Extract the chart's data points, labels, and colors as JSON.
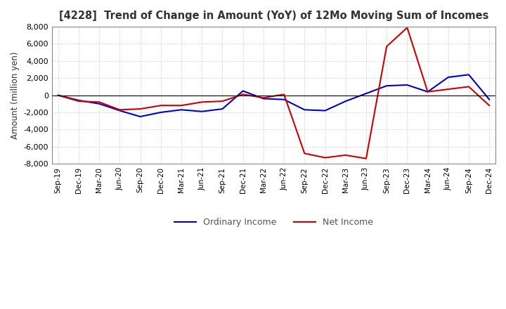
{
  "title": "[4228]  Trend of Change in Amount (YoY) of 12Mo Moving Sum of Incomes",
  "ylabel": "Amount (million yen)",
  "ylim": [
    -8000,
    8000
  ],
  "yticks": [
    -8000,
    -6000,
    -4000,
    -2000,
    0,
    2000,
    4000,
    6000,
    8000
  ],
  "ordinary_income_color": "#0000cc",
  "net_income_color": "#cc0000",
  "background_color": "#ffffff",
  "grid_color": "#aaaaaa",
  "x_labels": [
    "Sep-19",
    "Dec-19",
    "Mar-20",
    "Jun-20",
    "Sep-20",
    "Dec-20",
    "Mar-21",
    "Jun-21",
    "Sep-21",
    "Dec-21",
    "Mar-22",
    "Jun-22",
    "Sep-22",
    "Dec-22",
    "Mar-23",
    "Jun-23",
    "Sep-23",
    "Dec-23",
    "Mar-24",
    "Jun-24",
    "Sep-24",
    "Dec-24"
  ],
  "ordinary_income": [
    0,
    -600,
    -1000,
    -1800,
    -2500,
    -2000,
    -1700,
    -1900,
    -1600,
    500,
    -400,
    -500,
    -1700,
    -1800,
    -700,
    200,
    1100,
    1200,
    400,
    2100,
    2400,
    -500
  ],
  "net_income": [
    0,
    -700,
    -800,
    -1700,
    -1600,
    -1200,
    -1200,
    -800,
    -700,
    100,
    -300,
    100,
    -6800,
    -7300,
    -7000,
    -7400,
    5700,
    7900,
    400,
    700,
    1000,
    -1200
  ],
  "legend_labels": [
    "Ordinary Income",
    "Net Income"
  ]
}
